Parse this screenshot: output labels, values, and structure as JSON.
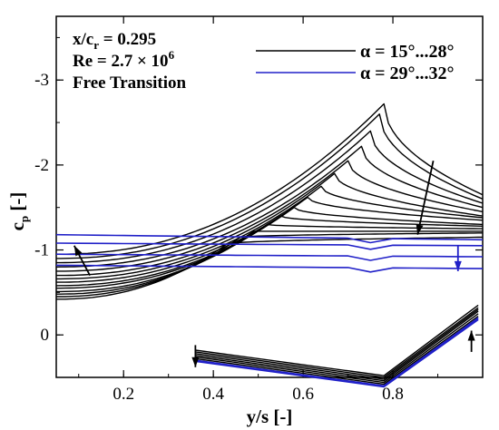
{
  "chart_data": {
    "type": "line",
    "annotations": [
      "x/c",
      "r",
      " = 0.295",
      "Re = 2.7 × 10",
      "6",
      "Free Transition"
    ],
    "xlabel": "y/s [-]",
    "ylabel_main": "c",
    "ylabel_sub": "p",
    "ylabel_tail": " [-]",
    "xlim": [
      0.05,
      1.0
    ],
    "ylim": [
      0.5,
      -3.75
    ],
    "y_inverted": true,
    "x_ticks": [
      0.2,
      0.4,
      0.6,
      0.8
    ],
    "x_tick_labels": [
      "0.2",
      "0.4",
      "0.6",
      "0.8"
    ],
    "y_ticks": [
      0,
      -1,
      -2,
      -3
    ],
    "y_tick_labels": [
      "0",
      "-1",
      "-2",
      "-3"
    ],
    "legend": [
      {
        "label": "α = 15°...28°",
        "color": "#000000"
      },
      {
        "label": "α = 29°...32°",
        "color": "#2020c8"
      }
    ],
    "legend_position": "top-right",
    "colors": {
      "low_alpha": "#000000",
      "high_alpha": "#2020c8"
    },
    "upper_black_curves": [
      {
        "alpha": 15,
        "peak_y": 0.43,
        "peak_cp": -1.07,
        "base_cp": -0.42,
        "tip_cp": -1.15
      },
      {
        "alpha": 16,
        "peak_y": 0.46,
        "peak_cp": -1.15,
        "base_cp": -0.45,
        "tip_cp": -1.2
      },
      {
        "alpha": 17,
        "peak_y": 0.49,
        "peak_cp": -1.22,
        "base_cp": -0.48,
        "tip_cp": -1.22
      },
      {
        "alpha": 18,
        "peak_y": 0.52,
        "peak_cp": -1.3,
        "base_cp": -0.51,
        "tip_cp": -1.25
      },
      {
        "alpha": 19,
        "peak_y": 0.55,
        "peak_cp": -1.4,
        "base_cp": -0.55,
        "tip_cp": -1.28
      },
      {
        "alpha": 20,
        "peak_y": 0.58,
        "peak_cp": -1.5,
        "base_cp": -0.58,
        "tip_cp": -1.3
      },
      {
        "alpha": 21,
        "peak_y": 0.61,
        "peak_cp": -1.62,
        "base_cp": -0.62,
        "tip_cp": -1.35
      },
      {
        "alpha": 22,
        "peak_y": 0.64,
        "peak_cp": -1.75,
        "base_cp": -0.66,
        "tip_cp": -1.38
      },
      {
        "alpha": 23,
        "peak_y": 0.67,
        "peak_cp": -1.9,
        "base_cp": -0.7,
        "tip_cp": -1.4
      },
      {
        "alpha": 24,
        "peak_y": 0.7,
        "peak_cp": -2.05,
        "base_cp": -0.75,
        "tip_cp": -1.45
      },
      {
        "alpha": 25,
        "peak_y": 0.73,
        "peak_cp": -2.22,
        "base_cp": -0.8,
        "tip_cp": -1.5
      },
      {
        "alpha": 26,
        "peak_y": 0.75,
        "peak_cp": -2.4,
        "base_cp": -0.85,
        "tip_cp": -1.55
      },
      {
        "alpha": 27,
        "peak_y": 0.77,
        "peak_cp": -2.6,
        "base_cp": -0.9,
        "tip_cp": -1.6
      },
      {
        "alpha": 28,
        "peak_y": 0.78,
        "peak_cp": -2.72,
        "base_cp": -0.95,
        "tip_cp": -1.65
      }
    ],
    "upper_blue_curves": [
      {
        "alpha": 29,
        "cp_root": -1.18,
        "cp_tip": -1.12
      },
      {
        "alpha": 30,
        "cp_root": -1.08,
        "cp_tip": -1.05
      },
      {
        "alpha": 31,
        "cp_root": -0.95,
        "cp_tip": -0.92
      },
      {
        "alpha": 32,
        "cp_root": -0.82,
        "cp_tip": -0.78
      }
    ],
    "lower_curves": {
      "y_start": 0.36,
      "y_kink": 0.78,
      "y_end": 0.99,
      "black": [
        {
          "cp_start": 0.18,
          "cp_kink": 0.48,
          "cp_end": -0.35
        },
        {
          "cp_start": 0.2,
          "cp_kink": 0.5,
          "cp_end": -0.32
        },
        {
          "cp_start": 0.22,
          "cp_kink": 0.52,
          "cp_end": -0.3
        },
        {
          "cp_start": 0.24,
          "cp_kink": 0.54,
          "cp_end": -0.28
        },
        {
          "cp_start": 0.26,
          "cp_kink": 0.56,
          "cp_end": -0.25
        },
        {
          "cp_start": 0.28,
          "cp_kink": 0.58,
          "cp_end": -0.22
        }
      ],
      "blue": [
        {
          "cp_start": 0.3,
          "cp_kink": 0.6,
          "cp_end": -0.2
        },
        {
          "cp_start": 0.31,
          "cp_kink": 0.61,
          "cp_end": -0.18
        }
      ]
    },
    "arrows": [
      {
        "from": [
          0.89,
          -2.05
        ],
        "to": [
          0.855,
          -1.18
        ],
        "color": "#000000"
      },
      {
        "from": [
          0.125,
          -0.7
        ],
        "to": [
          0.09,
          -1.05
        ],
        "color": "#000000"
      },
      {
        "from": [
          0.945,
          -1.05
        ],
        "to": [
          0.945,
          -0.75
        ],
        "color": "#2020c8"
      },
      {
        "from": [
          0.36,
          0.12
        ],
        "to": [
          0.36,
          0.38
        ],
        "color": "#000000"
      },
      {
        "from": [
          0.975,
          0.2
        ],
        "to": [
          0.975,
          -0.05
        ],
        "color": "#000000"
      }
    ]
  }
}
